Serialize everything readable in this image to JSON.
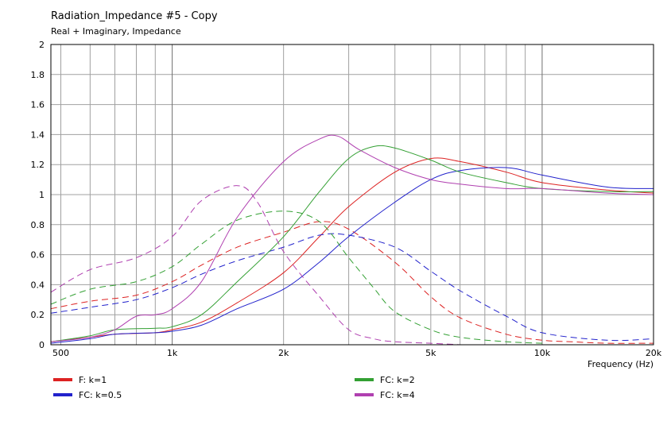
{
  "window": {
    "title": "Radiation_Impedance #5 - Copy",
    "subtitle": "Real + Imaginary, Impedance"
  },
  "chart_data": {
    "type": "line",
    "title": "Radiation_Impedance #5 - Copy",
    "subtitle": "Real + Imaginary, Impedance",
    "xlabel": "Frequency  (Hz)",
    "ylabel": "",
    "xscale": "log",
    "xlim": [
      470,
      20000
    ],
    "ylim": [
      0,
      2
    ],
    "grid": true,
    "legend_position": "bottom",
    "x_ticks": [
      {
        "value": 500,
        "label": "500"
      },
      {
        "value": 1000,
        "label": "1k"
      },
      {
        "value": 2000,
        "label": "2k"
      },
      {
        "value": 5000,
        "label": "5k"
      },
      {
        "value": 10000,
        "label": "10k"
      },
      {
        "value": 20000,
        "label": "20k"
      }
    ],
    "y_ticks": [
      {
        "value": 0,
        "label": "0"
      },
      {
        "value": 0.2,
        "label": "0.2"
      },
      {
        "value": 0.4,
        "label": "0.4"
      },
      {
        "value": 0.6,
        "label": "0.6"
      },
      {
        "value": 0.8,
        "label": "0.8"
      },
      {
        "value": 1,
        "label": "1"
      },
      {
        "value": 1.2,
        "label": "1.2"
      },
      {
        "value": 1.4,
        "label": "1.4"
      },
      {
        "value": 1.6,
        "label": "1.6"
      },
      {
        "value": 1.8,
        "label": "1.8"
      },
      {
        "value": 2,
        "label": "2"
      }
    ],
    "legend": [
      {
        "label": "F: k=1",
        "color": "#dd2222"
      },
      {
        "label": "FC: k=0.5",
        "color": "#2222cc"
      },
      {
        "label": "FC: k=2",
        "color": "#33a033"
      },
      {
        "label": "FC: k=4",
        "color": "#b040b0"
      }
    ],
    "series": [
      {
        "name": "F: k=1",
        "part": "real",
        "color": "#dd2222",
        "dashed": false,
        "x": [
          470,
          600,
          700,
          900,
          1000,
          1200,
          1500,
          2000,
          2500,
          3000,
          4000,
          5000,
          6000,
          8000,
          10000,
          15000,
          20000
        ],
        "y": [
          0.02,
          0.05,
          0.07,
          0.08,
          0.1,
          0.15,
          0.28,
          0.48,
          0.72,
          0.92,
          1.15,
          1.24,
          1.22,
          1.15,
          1.08,
          1.03,
          1.01
        ]
      },
      {
        "name": "F: k=1",
        "part": "imaginary",
        "color": "#dd2222",
        "dashed": true,
        "x": [
          470,
          600,
          800,
          1000,
          1200,
          1500,
          2000,
          2500,
          3000,
          4000,
          5000,
          6000,
          8000,
          10000,
          12000,
          15000,
          20000
        ],
        "y": [
          0.24,
          0.29,
          0.33,
          0.42,
          0.53,
          0.65,
          0.75,
          0.82,
          0.77,
          0.55,
          0.32,
          0.18,
          0.07,
          0.03,
          0.02,
          0.01,
          0.01
        ]
      },
      {
        "name": "FC: k=0.5",
        "part": "real",
        "color": "#2222cc",
        "dashed": false,
        "x": [
          470,
          600,
          700,
          900,
          1000,
          1200,
          1500,
          2000,
          2500,
          3000,
          4000,
          5000,
          6000,
          8000,
          10000,
          15000,
          20000
        ],
        "y": [
          0.01,
          0.04,
          0.07,
          0.08,
          0.09,
          0.13,
          0.24,
          0.37,
          0.55,
          0.72,
          0.95,
          1.1,
          1.16,
          1.18,
          1.13,
          1.05,
          1.04
        ]
      },
      {
        "name": "FC: k=0.5",
        "part": "imaginary",
        "color": "#2222cc",
        "dashed": true,
        "x": [
          470,
          600,
          800,
          1000,
          1200,
          1500,
          2000,
          2500,
          3000,
          4000,
          5000,
          6000,
          8000,
          10000,
          15000,
          20000
        ],
        "y": [
          0.21,
          0.25,
          0.3,
          0.38,
          0.47,
          0.56,
          0.65,
          0.73,
          0.73,
          0.65,
          0.49,
          0.36,
          0.19,
          0.08,
          0.03,
          0.04
        ]
      },
      {
        "name": "FC: k=2",
        "part": "real",
        "color": "#33a033",
        "dashed": false,
        "x": [
          470,
          600,
          700,
          900,
          1000,
          1200,
          1500,
          2000,
          2500,
          3000,
          3500,
          4000,
          5000,
          6000,
          8000,
          10000,
          15000,
          20000
        ],
        "y": [
          0.02,
          0.06,
          0.1,
          0.11,
          0.12,
          0.2,
          0.42,
          0.72,
          1.02,
          1.24,
          1.32,
          1.31,
          1.23,
          1.15,
          1.08,
          1.04,
          1.02,
          1.02
        ]
      },
      {
        "name": "FC: k=2",
        "part": "imaginary",
        "color": "#33a033",
        "dashed": true,
        "x": [
          470,
          600,
          800,
          1000,
          1200,
          1500,
          2000,
          2500,
          3000,
          3500,
          4000,
          5000,
          6000,
          8000,
          10000
        ],
        "y": [
          0.27,
          0.37,
          0.42,
          0.52,
          0.67,
          0.83,
          0.89,
          0.82,
          0.58,
          0.38,
          0.22,
          0.1,
          0.05,
          0.02,
          0.01
        ]
      },
      {
        "name": "FC: k=4",
        "part": "real",
        "color": "#b040b0",
        "dashed": false,
        "x": [
          470,
          600,
          700,
          800,
          900,
          1000,
          1200,
          1500,
          2000,
          2500,
          2800,
          3200,
          4000,
          5000,
          6000,
          8000,
          10000,
          15000,
          20000
        ],
        "y": [
          0.02,
          0.05,
          0.1,
          0.19,
          0.2,
          0.24,
          0.42,
          0.85,
          1.22,
          1.37,
          1.39,
          1.3,
          1.18,
          1.1,
          1.07,
          1.04,
          1.04,
          1.01,
          1.0
        ]
      },
      {
        "name": "FC: k=4",
        "part": "imaginary",
        "color": "#b040b0",
        "dashed": true,
        "x": [
          470,
          600,
          800,
          1000,
          1200,
          1500,
          1700,
          2000,
          2500,
          3000,
          3500,
          4000,
          5000,
          6000
        ],
        "y": [
          0.35,
          0.5,
          0.58,
          0.72,
          0.96,
          1.06,
          0.95,
          0.62,
          0.32,
          0.1,
          0.04,
          0.02,
          0.01,
          0.0
        ]
      }
    ]
  }
}
